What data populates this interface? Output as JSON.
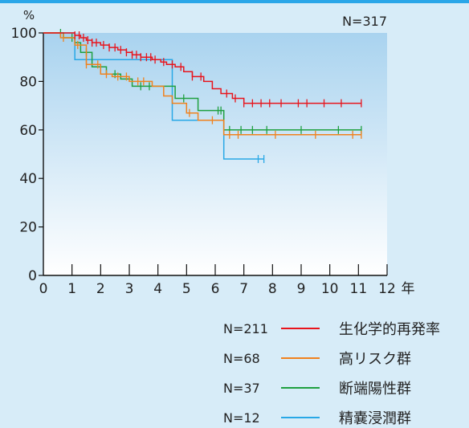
{
  "chart_data": {
    "type": "line",
    "subtype": "kaplan-meier-step",
    "yunit": "%",
    "total_label": "N=317",
    "xlim": [
      0,
      12
    ],
    "ylim": [
      0,
      100
    ],
    "x_unit_label": "年",
    "x_ticks": [
      0,
      1,
      2,
      3,
      4,
      5,
      6,
      7,
      8,
      9,
      10,
      11,
      12
    ],
    "y_ticks": [
      0,
      20,
      40,
      60,
      80,
      100
    ],
    "legend_position": "bottom-right",
    "series": [
      {
        "name": "生化学的再発率",
        "n_label": "N=211",
        "color": "#e8141c",
        "x": [
          0,
          1.1,
          1.3,
          1.5,
          1.7,
          2.0,
          2.3,
          2.6,
          2.9,
          3.1,
          3.4,
          3.8,
          4.1,
          4.3,
          4.6,
          4.9,
          5.2,
          5.6,
          5.9,
          6.2,
          6.6,
          7.0,
          11.1
        ],
        "y": [
          100,
          99,
          98,
          97,
          96,
          95,
          94,
          93,
          92,
          91,
          90,
          89,
          88,
          87,
          86,
          84,
          82,
          80,
          77,
          75,
          73,
          71,
          71
        ],
        "censor_x": [
          1.1,
          1.25,
          1.4,
          1.55,
          1.7,
          1.85,
          2.1,
          2.3,
          2.5,
          2.7,
          2.9,
          3.1,
          3.25,
          3.4,
          3.6,
          3.75,
          3.9,
          4.2,
          4.5,
          4.8,
          5.2,
          5.5,
          6.4,
          6.7,
          7.0,
          7.3,
          7.6,
          7.9,
          8.3,
          8.9,
          9.2,
          9.8,
          10.4,
          11.1
        ]
      },
      {
        "name": "高リスク群",
        "n_label": "N=68",
        "color": "#f0821e",
        "x": [
          0,
          0.6,
          1.1,
          1.5,
          2.0,
          2.4,
          3.0,
          3.8,
          4.2,
          4.5,
          5.0,
          5.4,
          6.3,
          11.1
        ],
        "y": [
          100,
          98,
          95,
          87,
          83,
          82,
          80,
          78,
          74,
          71,
          67,
          64,
          58,
          58
        ],
        "censor_x": [
          0.7,
          1.2,
          1.5,
          1.9,
          2.2,
          2.6,
          2.9,
          3.3,
          3.5,
          5.1,
          5.9,
          6.5,
          6.8,
          8.1,
          9.5,
          10.8,
          11.1
        ]
      },
      {
        "name": "断端陽性群",
        "n_label": "N=37",
        "color": "#1fa040",
        "x": [
          0,
          0.7,
          1.1,
          1.3,
          1.7,
          2.2,
          2.7,
          3.1,
          4.3,
          4.6,
          5.4,
          6.3,
          11.1
        ],
        "y": [
          100,
          98,
          96,
          92,
          86,
          83,
          81,
          78,
          78,
          73,
          68,
          60,
          60
        ],
        "censor_x": [
          0.6,
          1.0,
          1.5,
          2.5,
          3.4,
          3.7,
          4.9,
          6.1,
          6.2,
          6.5,
          6.9,
          7.3,
          7.8,
          9.0,
          10.3,
          11.1
        ]
      },
      {
        "name": "精嚢浸潤群",
        "n_label": "N=12",
        "color": "#29a8e6",
        "x": [
          0,
          1.1,
          4.2,
          4.5,
          6.3,
          7.7
        ],
        "y": [
          100,
          89,
          89,
          64,
          48,
          48
        ],
        "censor_x": [
          7.5,
          7.7
        ]
      }
    ]
  }
}
